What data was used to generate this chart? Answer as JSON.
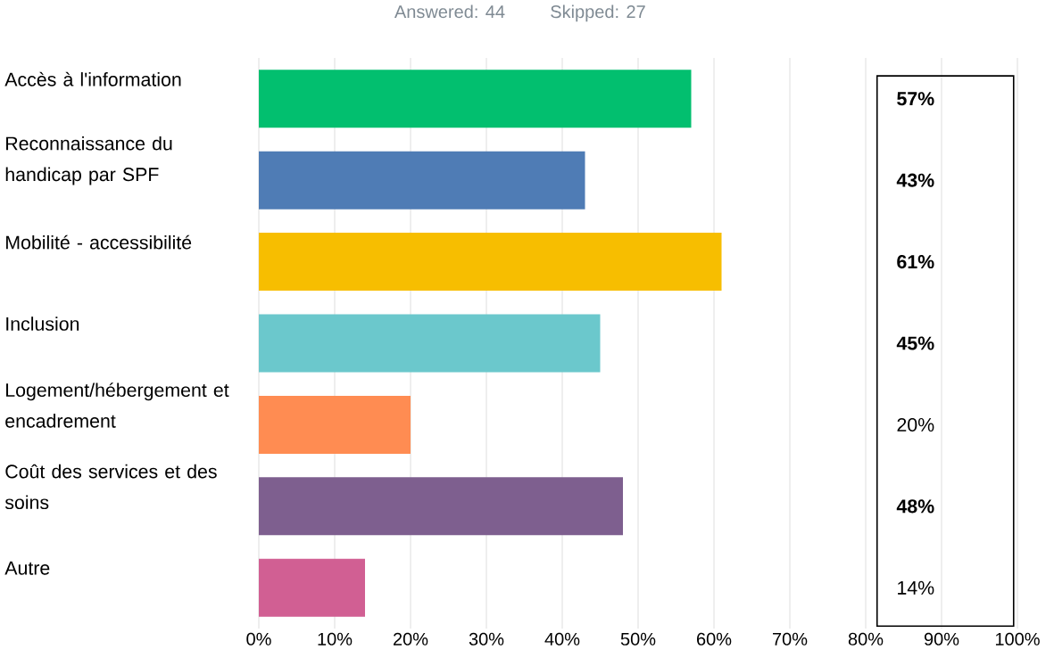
{
  "chart_data": {
    "type": "bar",
    "orientation": "horizontal",
    "title": "Answered: 44",
    "subtitle": "Skipped: 27",
    "categories": [
      "Accès à l'information",
      "Reconnaissance du handicap par SPF",
      "Mobilité - accessibilité",
      "Inclusion",
      "Logement/hébergement et encadrement",
      "Coût des services et des soins",
      "Autre"
    ],
    "values": [
      57,
      43,
      61,
      45,
      20,
      48,
      14
    ],
    "value_labels": [
      "**57%**",
      "**43%**",
      "**61%**",
      "**45%**",
      "20%",
      "**48%**",
      "14%"
    ],
    "colors": [
      "#02bf6f",
      "#4f7cb5",
      "#f7be00",
      "#6bc8cc",
      "#ff8c52",
      "#7e5f8f",
      "#d15f93"
    ],
    "xlim": [
      0,
      100
    ],
    "xticks": [
      {
        "value": 0,
        "label": "0%"
      },
      {
        "value": 10,
        "label": "10%"
      },
      {
        "value": 20,
        "label": "20%"
      },
      {
        "value": 30,
        "label": "30%"
      },
      {
        "value": 40,
        "label": "40%"
      },
      {
        "value": 50,
        "label": "50%"
      },
      {
        "value": 60,
        "label": "60%"
      },
      {
        "value": 70,
        "label": "70%"
      },
      {
        "value": 80,
        "label": "80%"
      },
      {
        "value": 90,
        "label": "90%"
      },
      {
        "value": 100,
        "label": "100%"
      }
    ],
    "grid": "x"
  }
}
